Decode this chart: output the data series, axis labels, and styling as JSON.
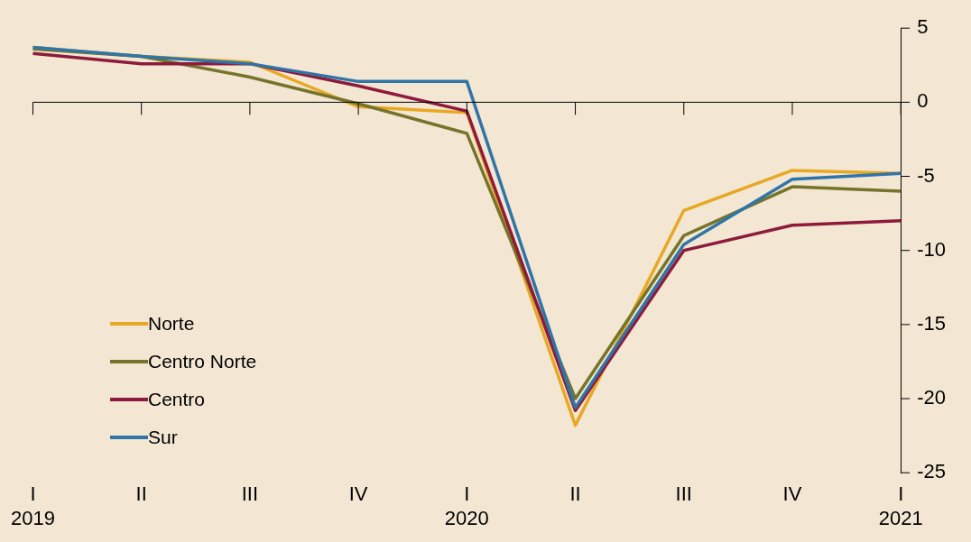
{
  "chart_data": {
    "type": "line",
    "categories": [
      "I\n2019",
      "II",
      "III",
      "IV",
      "I\n2020",
      "II",
      "III",
      "IV",
      "I\n2021"
    ],
    "series": [
      {
        "name": "Norte",
        "color": "#e8a824",
        "values": [
          3.7,
          3.1,
          2.7,
          -0.3,
          -0.7,
          -21.8,
          -7.3,
          -4.6,
          -4.8
        ]
      },
      {
        "name": "Centro Norte",
        "color": "#76742a",
        "values": [
          3.6,
          3.1,
          1.7,
          -0.1,
          -2.1,
          -20,
          -9,
          -5.7,
          -6
        ]
      },
      {
        "name": "Centro",
        "color": "#8e1b3c",
        "values": [
          3.3,
          2.6,
          2.6,
          1.1,
          -0.6,
          -20.8,
          -10,
          -8.3,
          -8
        ]
      },
      {
        "name": "Sur",
        "color": "#2f75a8",
        "values": [
          3.7,
          3.1,
          2.6,
          1.4,
          1.4,
          -20.6,
          -9.6,
          -5.2,
          -4.8
        ]
      }
    ],
    "ylim": [
      -25,
      5
    ],
    "yticks": [
      -25,
      -20,
      -15,
      -10,
      -5,
      0,
      5
    ],
    "legend": "bottom left",
    "marker": "none",
    "line_style": "solid"
  }
}
